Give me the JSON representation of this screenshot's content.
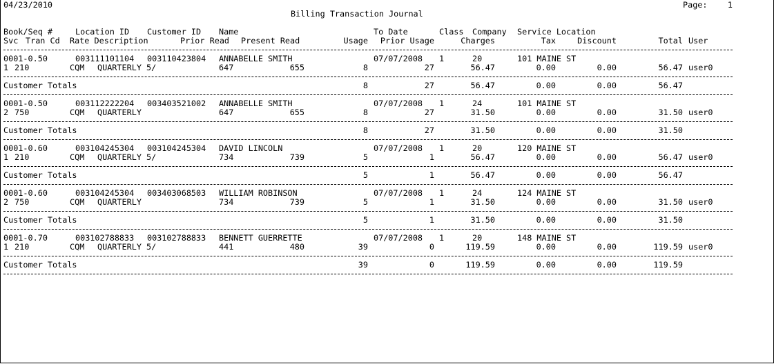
{
  "report": {
    "date": "04/23/2010",
    "page_label": "Page:",
    "page_number": "1",
    "title": "Billing Transaction Journal"
  },
  "headers": {
    "row1": {
      "book_seq": "Book/Seq #",
      "location_id": "Location ID",
      "customer_id": "Customer ID",
      "name": "Name",
      "to_date": "To Date",
      "class": "Class",
      "company": "Company",
      "service_location": "Service Location"
    },
    "row2": {
      "svc": "Svc",
      "tran_cd": "Tran Cd",
      "rate_description": "Rate Description",
      "prior_read": "Prior Read",
      "present_read": "Present Read",
      "usage": "Usage",
      "prior_usage": "Prior Usage",
      "charges": "Charges",
      "tax": "Tax",
      "discount": "Discount",
      "total": "Total",
      "user": "User"
    }
  },
  "totals_label": "Customer Totals",
  "records": [
    {
      "book_seq": "0001-0.50",
      "location_id": "003111101104",
      "customer_id": "003110423804",
      "name": "ANNABELLE SMITH",
      "to_date": "07/07/2008",
      "class": "1",
      "company": "20",
      "service_location": "101 MAINE ST",
      "svc": "1",
      "tran": "210",
      "cd": "CQM",
      "rate_description": "QUARTERLY 5/",
      "prior_read": "647",
      "present_read": "655",
      "usage": "8",
      "prior_usage": "27",
      "charges": "56.47",
      "tax": "0.00",
      "discount": "0.00",
      "total": "56.47",
      "user": "user0",
      "totals": {
        "usage": "8",
        "prior_usage": "27",
        "charges": "56.47",
        "tax": "0.00",
        "discount": "0.00",
        "total": "56.47"
      }
    },
    {
      "book_seq": "0001-0.50",
      "location_id": "003112222204",
      "customer_id": "003403521002",
      "name": "ANNABELLE SMITH",
      "to_date": "07/07/2008",
      "class": "1",
      "company": "24",
      "service_location": "101 MAINE ST",
      "svc": "2",
      "tran": "750",
      "cd": "CQM",
      "rate_description": "QUARTERLY",
      "prior_read": "647",
      "present_read": "655",
      "usage": "8",
      "prior_usage": "27",
      "charges": "31.50",
      "tax": "0.00",
      "discount": "0.00",
      "total": "31.50",
      "user": "user0",
      "totals": {
        "usage": "8",
        "prior_usage": "27",
        "charges": "31.50",
        "tax": "0.00",
        "discount": "0.00",
        "total": "31.50"
      }
    },
    {
      "book_seq": "0001-0.60",
      "location_id": "003104245304",
      "customer_id": "003104245304",
      "name": "DAVID LINCOLN",
      "to_date": "07/07/2008",
      "class": "1",
      "company": "20",
      "service_location": "120 MAINE ST",
      "svc": "1",
      "tran": "210",
      "cd": "CQM",
      "rate_description": "QUARTERLY 5/",
      "prior_read": "734",
      "present_read": "739",
      "usage": "5",
      "prior_usage": "1",
      "charges": "56.47",
      "tax": "0.00",
      "discount": "0.00",
      "total": "56.47",
      "user": "user0",
      "totals": {
        "usage": "5",
        "prior_usage": "1",
        "charges": "56.47",
        "tax": "0.00",
        "discount": "0.00",
        "total": "56.47"
      }
    },
    {
      "book_seq": "0001-0.60",
      "location_id": "003104245304",
      "customer_id": "003403068503",
      "name": "WILLIAM ROBINSON",
      "to_date": "07/07/2008",
      "class": "1",
      "company": "24",
      "service_location": "124 MAINE ST",
      "svc": "2",
      "tran": "750",
      "cd": "CQM",
      "rate_description": "QUARTERLY",
      "prior_read": "734",
      "present_read": "739",
      "usage": "5",
      "prior_usage": "1",
      "charges": "31.50",
      "tax": "0.00",
      "discount": "0.00",
      "total": "31.50",
      "user": "user0",
      "totals": {
        "usage": "5",
        "prior_usage": "1",
        "charges": "31.50",
        "tax": "0.00",
        "discount": "0.00",
        "total": "31.50"
      }
    },
    {
      "book_seq": "0001-0.70",
      "location_id": "003102788833",
      "customer_id": "003102788833",
      "name": "BENNETT GUERRETTE",
      "to_date": "07/07/2008",
      "class": "1",
      "company": "20",
      "service_location": "148 MAINE ST",
      "svc": "1",
      "tran": "210",
      "cd": "CQM",
      "rate_description": "QUARTERLY 5/",
      "prior_read": "441",
      "present_read": "480",
      "usage": "39",
      "prior_usage": "0",
      "charges": "119.59",
      "tax": "0.00",
      "discount": "0.00",
      "total": "119.59",
      "user": "user0",
      "totals": {
        "usage": "39",
        "prior_usage": "0",
        "charges": "119.59",
        "tax": "0.00",
        "discount": "0.00",
        "total": "119.59"
      }
    }
  ]
}
